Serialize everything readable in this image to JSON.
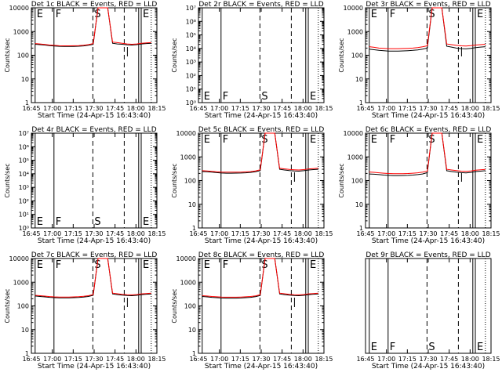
{
  "chart_data": [
    {
      "type": "line",
      "title": "Det 1c BLACK = Events, RED = LLD",
      "xlabel": "Start Time (24-Apr-15 16:43:40)",
      "ylabel": "Counts/sec",
      "y_scale": "log",
      "ylim": [
        1,
        10000
      ],
      "y_ticks": [
        "1",
        "10",
        "100",
        "1000",
        "10000"
      ],
      "x_ticks": [
        "16:45",
        "17:00",
        "17:15",
        "17:30",
        "17:45",
        "18:00",
        "18:15"
      ],
      "markers": [
        "E",
        "F",
        "S",
        "E"
      ],
      "series": [
        {
          "color": "#000000",
          "values": [
            290,
            280,
            270,
            255,
            245,
            238,
            235,
            235,
            236,
            240,
            248,
            262,
            285,
            10000,
            10000,
            10000,
            320,
            300,
            290,
            275,
            268,
            280,
            300,
            310,
            320
          ]
        },
        {
          "color": "#ff0000",
          "values": [
            310,
            300,
            285,
            270,
            260,
            252,
            250,
            250,
            252,
            256,
            264,
            280,
            310,
            10000,
            10000,
            10000,
            360,
            340,
            320,
            300,
            290,
            300,
            320,
            330,
            340
          ]
        }
      ]
    },
    {
      "type": "line",
      "title": "Det 2r BLACK = Events, RED = LLD",
      "xlabel": "Start Time (24-Apr-15 16:43:40)",
      "ylabel": "Counts/sec",
      "y_scale": "log",
      "y_ticks": [
        "10⁰",
        "10¹",
        "10²",
        "10³",
        "10⁴",
        "10⁵",
        "10⁶",
        "10⁷"
      ],
      "x_ticks": [
        "16:45",
        "17:00",
        "17:15",
        "17:30",
        "17:45",
        "18:00",
        "18:15"
      ],
      "markers": [
        "E",
        "F",
        "S",
        "E"
      ],
      "series": []
    },
    {
      "type": "line",
      "title": "Det 3r BLACK = Events, RED = LLD",
      "xlabel": "Start Time (24-Apr-15 16:43:40)",
      "ylabel": "Counts/sec",
      "y_scale": "log",
      "ylim": [
        1,
        10000
      ],
      "y_ticks": [
        "1",
        "10",
        "100",
        "1000",
        "10000"
      ],
      "x_ticks": [
        "16:45",
        "17:00",
        "17:15",
        "17:30",
        "17:45",
        "18:00",
        "18:15"
      ],
      "markers": [
        "E",
        "F",
        "S",
        "E"
      ],
      "series": [
        {
          "color": "#000000",
          "values": [
            180,
            170,
            160,
            155,
            150,
            150,
            150,
            152,
            155,
            160,
            168,
            180,
            200,
            10000,
            10000,
            10000,
            240,
            220,
            200,
            190,
            185,
            195,
            210,
            220,
            230
          ]
        },
        {
          "color": "#ff0000",
          "values": [
            230,
            215,
            200,
            195,
            190,
            190,
            190,
            192,
            195,
            200,
            210,
            225,
            250,
            10000,
            10000,
            10000,
            300,
            280,
            260,
            250,
            245,
            255,
            270,
            280,
            290
          ]
        }
      ]
    },
    {
      "type": "line",
      "title": "Det 4r BLACK = Events, RED = LLD",
      "xlabel": "Start Time (24-Apr-15 16:43:40)",
      "ylabel": "Counts/sec",
      "y_scale": "log",
      "y_ticks": [
        "10⁰",
        "10¹",
        "10²",
        "10³",
        "10⁴",
        "10⁵",
        "10⁶",
        "10⁷"
      ],
      "x_ticks": [
        "16:45",
        "17:00",
        "17:15",
        "17:30",
        "17:45",
        "18:00",
        "18:15"
      ],
      "markers": [
        "E",
        "F",
        "S",
        "E"
      ],
      "series": []
    },
    {
      "type": "line",
      "title": "Det 5c BLACK = Events, RED = LLD",
      "xlabel": "Start Time (24-Apr-15 16:43:40)",
      "ylabel": "Counts/sec",
      "y_scale": "log",
      "ylim": [
        1,
        10000
      ],
      "y_ticks": [
        "1",
        "10",
        "100",
        "1000",
        "10000"
      ],
      "x_ticks": [
        "16:45",
        "17:00",
        "17:15",
        "17:30",
        "17:45",
        "18:00",
        "18:15"
      ],
      "markers": [
        "E",
        "F",
        "S",
        "E"
      ],
      "series": [
        {
          "color": "#000000",
          "values": [
            240,
            235,
            225,
            215,
            208,
            205,
            205,
            206,
            208,
            212,
            220,
            235,
            260,
            10000,
            10000,
            10000,
            300,
            280,
            265,
            255,
            250,
            260,
            280,
            290,
            300
          ]
        },
        {
          "color": "#ff0000",
          "values": [
            260,
            255,
            245,
            235,
            228,
            225,
            225,
            226,
            228,
            232,
            240,
            255,
            285,
            10000,
            10000,
            10000,
            330,
            310,
            295,
            285,
            280,
            290,
            310,
            320,
            330
          ]
        }
      ]
    },
    {
      "type": "line",
      "title": "Det 6c BLACK = Events, RED = LLD",
      "xlabel": "Start Time (24-Apr-15 16:43:40)",
      "ylabel": "Counts/sec",
      "y_scale": "log",
      "ylim": [
        1,
        10000
      ],
      "y_ticks": [
        "1",
        "10",
        "100",
        "1000",
        "10000"
      ],
      "x_ticks": [
        "16:45",
        "17:00",
        "17:15",
        "17:30",
        "17:45",
        "18:00",
        "18:15"
      ],
      "markers": [
        "E",
        "F",
        "S",
        "E"
      ],
      "series": [
        {
          "color": "#000000",
          "values": [
            190,
            185,
            178,
            170,
            165,
            162,
            162,
            163,
            165,
            170,
            178,
            190,
            215,
            10000,
            10000,
            10000,
            260,
            240,
            225,
            215,
            210,
            220,
            240,
            250,
            260
          ]
        },
        {
          "color": "#ff0000",
          "values": [
            230,
            222,
            212,
            204,
            198,
            195,
            195,
            196,
            198,
            204,
            212,
            225,
            250,
            10000,
            10000,
            10000,
            300,
            280,
            262,
            250,
            245,
            255,
            275,
            285,
            295
          ]
        }
      ]
    },
    {
      "type": "line",
      "title": "Det 7c BLACK = Events, RED = LLD",
      "xlabel": "Start Time (24-Apr-15 16:43:40)",
      "ylabel": "Counts/sec",
      "y_scale": "log",
      "ylim": [
        1,
        10000
      ],
      "y_ticks": [
        "1",
        "10",
        "100",
        "1000",
        "10000"
      ],
      "x_ticks": [
        "16:45",
        "17:00",
        "17:15",
        "17:30",
        "17:45",
        "18:00",
        "18:15"
      ],
      "markers": [
        "E",
        "F",
        "S",
        "E"
      ],
      "series": [
        {
          "color": "#000000",
          "values": [
            260,
            250,
            240,
            230,
            222,
            218,
            218,
            219,
            222,
            228,
            236,
            250,
            280,
            10000,
            10000,
            10000,
            320,
            300,
            285,
            275,
            270,
            280,
            300,
            310,
            320
          ]
        },
        {
          "color": "#ff0000",
          "values": [
            280,
            270,
            258,
            248,
            240,
            236,
            236,
            237,
            240,
            246,
            255,
            270,
            300,
            10000,
            10000,
            10000,
            345,
            325,
            308,
            298,
            292,
            302,
            322,
            332,
            342
          ]
        }
      ]
    },
    {
      "type": "line",
      "title": "Det 8c BLACK = Events, RED = LLD",
      "xlabel": "Start Time (24-Apr-15 16:43:40)",
      "ylabel": "Counts/sec",
      "y_scale": "log",
      "ylim": [
        1,
        10000
      ],
      "y_ticks": [
        "1",
        "10",
        "100",
        "1000",
        "10000"
      ],
      "x_ticks": [
        "16:45",
        "17:00",
        "17:15",
        "17:30",
        "17:45",
        "18:00",
        "18:15"
      ],
      "markers": [
        "E",
        "F",
        "S",
        "E"
      ],
      "series": [
        {
          "color": "#000000",
          "values": [
            250,
            240,
            230,
            222,
            215,
            212,
            212,
            213,
            216,
            222,
            230,
            245,
            275,
            10000,
            10000,
            10000,
            320,
            300,
            285,
            275,
            270,
            280,
            300,
            310,
            320
          ]
        },
        {
          "color": "#ff0000",
          "values": [
            270,
            260,
            250,
            242,
            235,
            232,
            232,
            233,
            236,
            242,
            250,
            265,
            295,
            10000,
            10000,
            10000,
            345,
            325,
            308,
            298,
            292,
            302,
            322,
            332,
            342
          ]
        }
      ]
    },
    {
      "type": "line",
      "title": "Det 9r BLACK = Events, RED = LLD",
      "xlabel": "Start Time (24-Apr-15 16:43:40)",
      "ylabel": "",
      "y_scale": "log",
      "y_ticks": [],
      "x_ticks": [
        "16:45",
        "17:00",
        "17:15",
        "17:30",
        "17:45",
        "18:00",
        "18:15"
      ],
      "markers": [
        "E",
        "F",
        "S",
        "E"
      ],
      "series": []
    }
  ]
}
